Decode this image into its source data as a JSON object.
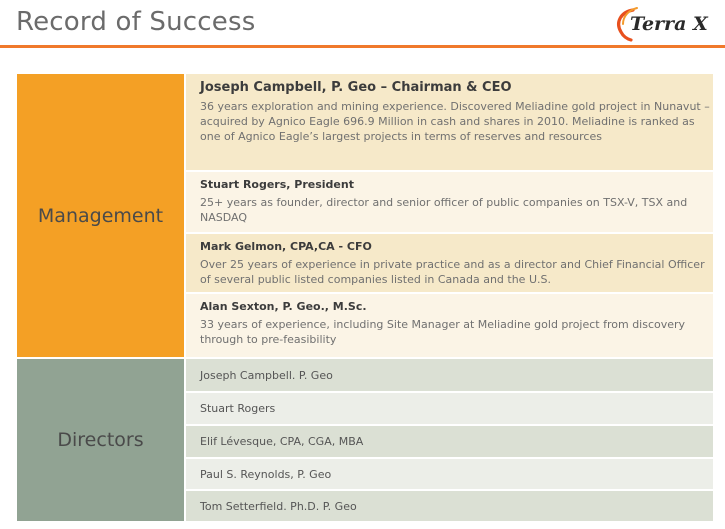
{
  "header": {
    "title": "Record of Success",
    "logo_text": "Terra X",
    "accent_color": "#f0792b"
  },
  "management": {
    "label": "Management",
    "color": "#f4a025",
    "members": [
      {
        "name": "Joseph Campbell, P. Geo – Chairman & CEO",
        "description": "36 years exploration and mining experience.  Discovered Meliadine gold project in Nunavut – acquired by Agnico Eagle 696.9 Million in cash and shares in 2010.  Meliadine is ranked as one of Agnico Eagle’s largest projects in terms of reserves and resources"
      },
      {
        "name": "Stuart Rogers, President",
        "description": "25+ years as founder, director and senior officer of public companies on TSX-V, TSX and NASDAQ"
      },
      {
        "name": "Mark Gelmon, CPA,CA - CFO",
        "description": "Over 25 years of experience in private practice and as a director and Chief Financial Officer of several public listed companies listed in Canada and the U.S."
      },
      {
        "name": "Alan Sexton, P. Geo., M.Sc.",
        "description": "33 years of experience, including Site Manager at Meliadine gold project from discovery through to pre-feasibility"
      }
    ]
  },
  "directors": {
    "label": "Directors",
    "color": "#91a393",
    "members": [
      "Joseph Campbell. P. Geo",
      "Stuart Rogers",
      "Elif Lévesque, CPA, CGA, MBA",
      "Paul S. Reynolds, P. Geo",
      "Tom Setterfield. Ph.D. P. Geo"
    ]
  }
}
